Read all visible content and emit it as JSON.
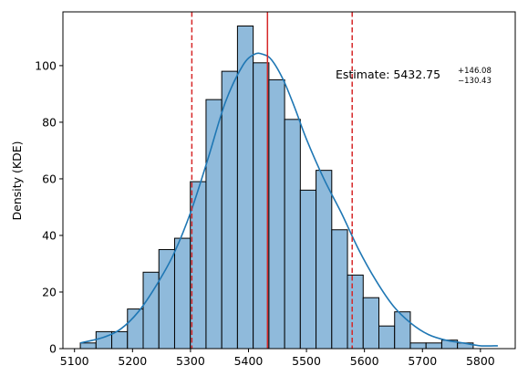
{
  "chart_data": {
    "type": "bar",
    "title": "",
    "xlabel": "",
    "ylabel": "Density (KDE)",
    "xlim": [
      5080,
      5860
    ],
    "ylim": [
      0,
      119
    ],
    "xticks": [
      5100,
      5200,
      5300,
      5400,
      5500,
      5600,
      5700,
      5800
    ],
    "yticks": [
      0,
      20,
      40,
      60,
      80,
      100
    ],
    "grid": false,
    "colors": {
      "bar_fill": "#8fbadb",
      "bar_edge": "#000000",
      "kde_line": "#1f77b4",
      "estimate_line": "#d62728"
    },
    "bins": {
      "start": 5110,
      "width": 27.1,
      "counts": [
        2,
        6,
        6,
        14,
        27,
        35,
        39,
        59,
        88,
        98,
        114,
        101,
        95,
        81,
        56,
        63,
        42,
        26,
        18,
        8,
        13,
        2,
        2,
        3,
        2
      ]
    },
    "kde": {
      "x": [
        5110,
        5150,
        5180,
        5210,
        5240,
        5270,
        5300,
        5330,
        5360,
        5390,
        5410,
        5425,
        5440,
        5460,
        5480,
        5500,
        5530,
        5560,
        5590,
        5620,
        5650,
        5680,
        5710,
        5740,
        5770,
        5800,
        5830
      ],
      "y": [
        2,
        4,
        7,
        13,
        22,
        33,
        48,
        67,
        87,
        100,
        104,
        104,
        102,
        95,
        85,
        74,
        60,
        48,
        35,
        24,
        15,
        9,
        5,
        3,
        2,
        1,
        1
      ]
    },
    "estimate": {
      "value": 5432.75,
      "upper_err": 146.08,
      "lower_err": 130.43,
      "lower_bound": 5302.32,
      "upper_bound": 5578.83
    },
    "annotation": {
      "prefix": "Estimate: 5432.75",
      "sup": "+146.08",
      "sub": "−130.43"
    }
  }
}
